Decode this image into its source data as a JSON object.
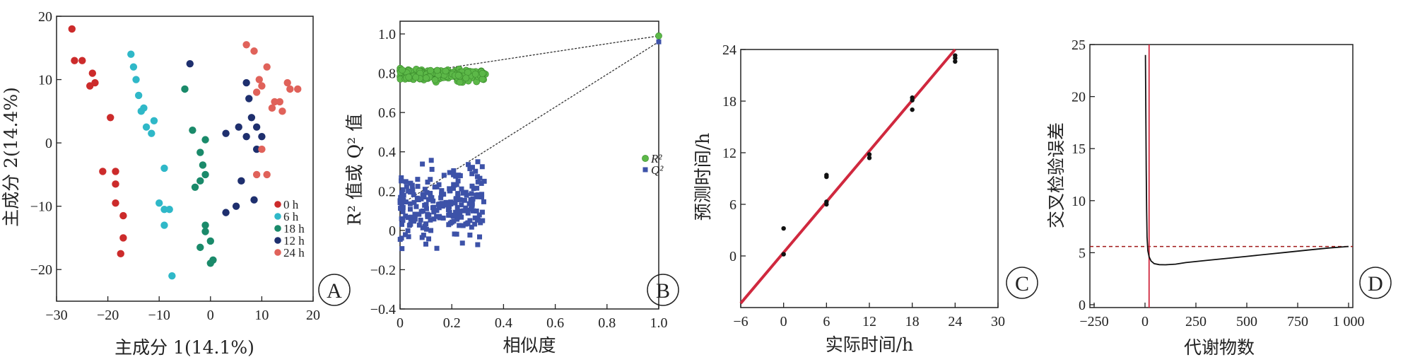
{
  "chart_data": [
    {
      "id": "A",
      "type": "scatter",
      "panel_label": "A",
      "xlabel": "主成分 1(14.1%)",
      "ylabel": "主成分 2(14.4%)",
      "xlim": [
        -30,
        20
      ],
      "ylim": [
        -25,
        20
      ],
      "xticks": [
        -30,
        -20,
        -10,
        0,
        10,
        20
      ],
      "yticks": [
        -20,
        -10,
        0,
        10,
        20
      ],
      "xtick_labels": [
        "−30",
        "−20",
        "−10",
        "0",
        "10",
        "20"
      ],
      "ytick_labels": [
        "−20",
        "−10",
        "0",
        "10",
        "20"
      ],
      "legend_position": "lower-right",
      "series": [
        {
          "name": "0 h",
          "color": "#cc2b2b",
          "points": [
            [
              -27,
              18
            ],
            [
              -26.5,
              13
            ],
            [
              -25,
              13
            ],
            [
              -23.5,
              9
            ],
            [
              -23,
              11
            ],
            [
              -22.5,
              9.5
            ],
            [
              -19.5,
              4
            ],
            [
              -21,
              -4.5
            ],
            [
              -18.5,
              -4.5
            ],
            [
              -18.5,
              -6.5
            ],
            [
              -18.5,
              -9.5
            ],
            [
              -17,
              -11.5
            ],
            [
              -17,
              -15
            ],
            [
              -17.5,
              -17.5
            ]
          ]
        },
        {
          "name": "6 h",
          "color": "#2fb8c8",
          "points": [
            [
              -15.5,
              14
            ],
            [
              -15,
              12
            ],
            [
              -14.5,
              10
            ],
            [
              -14,
              7.5
            ],
            [
              -13.5,
              5
            ],
            [
              -13,
              5.5
            ],
            [
              -12.5,
              2.5
            ],
            [
              -11,
              3.5
            ],
            [
              -11.5,
              1.5
            ],
            [
              -9,
              -4
            ],
            [
              -10,
              -9.5
            ],
            [
              -9,
              -10.5
            ],
            [
              -8,
              -10.5
            ],
            [
              -9,
              -13
            ],
            [
              -7.5,
              -21
            ]
          ]
        },
        {
          "name": "18 h",
          "color": "#1a8a6a",
          "points": [
            [
              -5,
              8.5
            ],
            [
              -3.5,
              2
            ],
            [
              -2,
              -1.5
            ],
            [
              -1.5,
              -3.5
            ],
            [
              -1,
              0.5
            ],
            [
              -1,
              -5
            ],
            [
              -3,
              -7
            ],
            [
              -2,
              -6
            ],
            [
              -1,
              -13
            ],
            [
              -1,
              -14
            ],
            [
              0,
              -15.5
            ],
            [
              -2,
              -16.5
            ],
            [
              0.5,
              -18.5
            ],
            [
              0,
              -19
            ]
          ]
        },
        {
          "name": "12 h",
          "color": "#1e2f6e",
          "points": [
            [
              -4,
              12.5
            ],
            [
              3,
              1.5
            ],
            [
              5.5,
              2.5
            ],
            [
              7,
              9.5
            ],
            [
              7.5,
              7
            ],
            [
              8,
              4
            ],
            [
              7,
              1
            ],
            [
              9,
              2.5
            ],
            [
              9,
              -1
            ],
            [
              10,
              1
            ],
            [
              6,
              -6
            ],
            [
              3,
              -11
            ],
            [
              5,
              -10
            ],
            [
              8.5,
              -9
            ]
          ]
        },
        {
          "name": "24 h",
          "color": "#e0625a",
          "points": [
            [
              7,
              15.5
            ],
            [
              8.5,
              14.5
            ],
            [
              9.5,
              10
            ],
            [
              10,
              9
            ],
            [
              9,
              8
            ],
            [
              11,
              12
            ],
            [
              12,
              5.5
            ],
            [
              12.5,
              6.5
            ],
            [
              13.5,
              6.5
            ],
            [
              14,
              5
            ],
            [
              15,
              9.5
            ],
            [
              15.5,
              8.5
            ],
            [
              17,
              8.5
            ],
            [
              10,
              -1
            ],
            [
              11,
              -5
            ],
            [
              9,
              -5
            ]
          ]
        }
      ]
    },
    {
      "id": "B",
      "type": "scatter",
      "panel_label": "B",
      "xlabel": "相似度",
      "ylabel": "R² 值或 Q² 值",
      "xlim": [
        0,
        1.0
      ],
      "ylim": [
        -0.4,
        1.0
      ],
      "xticks": [
        0,
        0.2,
        0.4,
        0.6,
        0.8,
        1.0
      ],
      "yticks": [
        -0.4,
        -0.2,
        0,
        0.2,
        0.4,
        0.6,
        0.8,
        1.0
      ],
      "xtick_labels": [
        "0",
        "0.2",
        "0.4",
        "0.6",
        "0.8",
        "1.0"
      ],
      "ytick_labels": [
        "−0.4",
        "−0.2",
        "0",
        "0.2",
        "0.4",
        "0.6",
        "0.8",
        "1.0"
      ],
      "legend_position": "right",
      "legend": [
        {
          "label": "R²",
          "color": "#5cb848"
        },
        {
          "label": "Q²",
          "color": "#3d52a8"
        }
      ],
      "r2_cloud": {
        "x_range": [
          0.0,
          0.33
        ],
        "y_range": [
          0.72,
          0.88
        ],
        "count": 200
      },
      "q2_cloud": {
        "x_range": [
          0.0,
          0.33
        ],
        "y_range": [
          -0.38,
          0.44
        ],
        "count": 230
      },
      "r2_point": [
        1.0,
        0.99
      ],
      "q2_point": [
        1.0,
        0.96
      ],
      "r2_fit_line": [
        [
          0.0,
          0.79
        ],
        [
          1.0,
          0.99
        ]
      ],
      "q2_fit_line": [
        [
          0.0,
          0.13
        ],
        [
          1.0,
          0.96
        ]
      ]
    },
    {
      "id": "C",
      "type": "scatter",
      "panel_label": "C",
      "xlabel": "实际时间/h",
      "ylabel": "预测时间/h",
      "xlim": [
        -6,
        30
      ],
      "ylim": [
        -6,
        24
      ],
      "xticks": [
        -6,
        0,
        6,
        12,
        18,
        24,
        30
      ],
      "yticks": [
        0,
        6,
        12,
        18,
        24
      ],
      "xtick_labels": [
        "−6",
        "0",
        "6",
        "12",
        "18",
        "24",
        "30"
      ],
      "ytick_labels": [
        "0",
        "6",
        "12",
        "18",
        "24"
      ],
      "fit_line": [
        [
          -6,
          -5.5
        ],
        [
          24,
          24
        ]
      ],
      "fit_color": "#d0283e",
      "points": [
        [
          0,
          3.2
        ],
        [
          0,
          0.2
        ],
        [
          6,
          9.4
        ],
        [
          6,
          9.2
        ],
        [
          6,
          6.3
        ],
        [
          6,
          6.0
        ],
        [
          12,
          11.8
        ],
        [
          12,
          11.4
        ],
        [
          18,
          18.4
        ],
        [
          18,
          18.1
        ],
        [
          18,
          17.0
        ],
        [
          24,
          23.3
        ],
        [
          24,
          23.0
        ],
        [
          24,
          22.6
        ]
      ]
    },
    {
      "id": "D",
      "type": "line",
      "panel_label": "D",
      "xlabel": "代谢物数",
      "ylabel": "交叉检验误差",
      "xlim": [
        -250,
        1000
      ],
      "ylim": [
        0,
        25
      ],
      "xticks": [
        -250,
        0,
        250,
        500,
        750,
        1000
      ],
      "yticks": [
        0,
        5,
        10,
        15,
        20,
        25
      ],
      "xtick_labels": [
        "−250",
        "0",
        "250",
        "500",
        "750",
        "1 000"
      ],
      "ytick_labels": [
        "0",
        "5",
        "10",
        "15",
        "20",
        "25"
      ],
      "hline": 5.6,
      "vline": 20,
      "curve": [
        [
          2,
          24
        ],
        [
          4,
          18
        ],
        [
          6,
          13
        ],
        [
          8,
          9
        ],
        [
          10,
          6.5
        ],
        [
          14,
          5.2
        ],
        [
          20,
          4.6
        ],
        [
          30,
          4.2
        ],
        [
          45,
          3.95
        ],
        [
          70,
          3.85
        ],
        [
          100,
          3.84
        ],
        [
          150,
          3.9
        ],
        [
          200,
          4.05
        ],
        [
          250,
          4.15
        ],
        [
          300,
          4.25
        ],
        [
          400,
          4.45
        ],
        [
          500,
          4.65
        ],
        [
          600,
          4.85
        ],
        [
          700,
          5.05
        ],
        [
          800,
          5.25
        ],
        [
          900,
          5.45
        ],
        [
          1000,
          5.6
        ]
      ]
    }
  ]
}
